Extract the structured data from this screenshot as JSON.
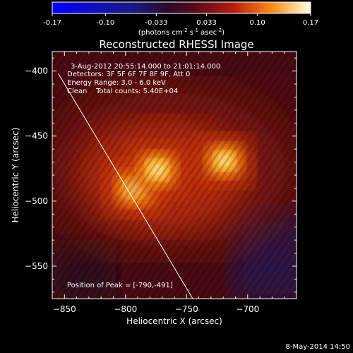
{
  "chart_data": {
    "type": "heatmap",
    "title": "Reconstructed RHESSI Image",
    "xlabel": "Heliocentric X (arcsec)",
    "ylabel": "Heliocentric Y (arcsec)",
    "xlim": [
      -860,
      -660
    ],
    "ylim": [
      -575,
      -385
    ],
    "xticks": [
      -850,
      -800,
      -750,
      -700
    ],
    "yticks": [
      -400,
      -450,
      -500,
      -550
    ],
    "colorbar": {
      "range": [
        -0.17,
        0.17
      ],
      "ticks": [
        "-0.17",
        "-0.10",
        "-0.033",
        "0.033",
        "0.10",
        "0.17"
      ],
      "tick_values": [
        -0.17,
        -0.1,
        -0.033,
        0.033,
        0.1,
        0.17
      ],
      "unit_label_prefix": "(photons cm",
      "unit_sup1": "-2",
      "unit_mid1": " s",
      "unit_sup2": "-1",
      "unit_mid2": " asec",
      "unit_sup3": "-2",
      "unit_suffix": ")"
    },
    "annotations": {
      "time_range": "3-Aug-2012 20:55:14.000 to 21:01:14.000",
      "detectors": "Detectors: 3F 5F 6F 7F 8F 9F, Att 0",
      "energy_range": "Energy Range: 3.0 - 6.0 keV",
      "method_counts": "Clean    Total counts: 5.40E+04",
      "peak_position": "Position of Peak = [-790,-491]"
    },
    "sources": [
      {
        "x": -792,
        "y": -490,
        "intensity": 1.0
      },
      {
        "x": -774,
        "y": -476,
        "intensity": 0.95
      },
      {
        "x": -719,
        "y": -469,
        "intensity": 0.85
      }
    ],
    "limb_line": {
      "x": [
        -855,
        -745
      ],
      "y": [
        -402,
        -575
      ]
    },
    "footer_date": "8-May-2014 14:50"
  }
}
